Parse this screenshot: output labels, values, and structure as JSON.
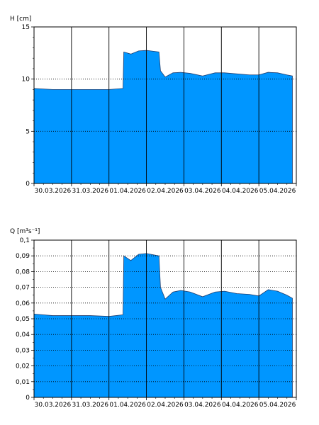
{
  "chart_data": [
    {
      "type": "area",
      "ylabel": "H [cm]",
      "ylim": [
        0,
        15
      ],
      "yticks": [
        0,
        5,
        10,
        15
      ],
      "ytick_labels": [
        "0",
        "5",
        "10",
        "15"
      ],
      "x_start": "2026-03-30T00:00",
      "x_end": "2026-04-06T00:00",
      "xtick_labels": [
        "30.03.2026",
        "31.03.2026",
        "01.04.2026",
        "02.04.2026",
        "03.04.2026",
        "04.04.2026",
        "05.04.2026"
      ],
      "grid": true,
      "fill_color": "#0096ff",
      "series": [
        {
          "x": [
            "2026-03-30T00:00",
            "2026-03-30T12:00",
            "2026-03-31T00:00",
            "2026-03-31T12:00",
            "2026-04-01T00:00",
            "2026-04-01T09:00",
            "2026-04-01T09:30",
            "2026-04-01T14:00",
            "2026-04-01T19:00",
            "2026-04-02T00:00",
            "2026-04-02T08:00",
            "2026-04-02T09:00",
            "2026-04-02T12:00",
            "2026-04-02T17:00",
            "2026-04-02T22:00",
            "2026-04-03T04:00",
            "2026-04-03T12:00",
            "2026-04-03T20:00",
            "2026-04-04T02:00",
            "2026-04-04T10:00",
            "2026-04-04T18:00",
            "2026-04-05T00:00",
            "2026-04-05T06:00",
            "2026-04-05T12:00",
            "2026-04-05T18:00",
            "2026-04-05T21:30"
          ],
          "values": [
            9.1,
            9.0,
            9.0,
            9.0,
            9.0,
            9.1,
            12.6,
            12.4,
            12.7,
            12.75,
            12.6,
            10.8,
            10.2,
            10.6,
            10.65,
            10.55,
            10.3,
            10.6,
            10.6,
            10.5,
            10.4,
            10.4,
            10.65,
            10.6,
            10.4,
            10.3
          ]
        }
      ]
    },
    {
      "type": "area",
      "ylabel": "Q [m³s⁻¹]",
      "ylim": [
        0,
        0.1
      ],
      "yticks": [
        0,
        0.01,
        0.02,
        0.03,
        0.04,
        0.05,
        0.06,
        0.07,
        0.08,
        0.09,
        0.1
      ],
      "ytick_labels": [
        "0",
        "0,01",
        "0,02",
        "0,03",
        "0,04",
        "0,05",
        "0,06",
        "0,07",
        "0,08",
        "0,09",
        "0,1"
      ],
      "x_start": "2026-03-30T00:00",
      "x_end": "2026-04-06T00:00",
      "xtick_labels": [
        "30.03.2026",
        "31.03.2026",
        "01.04.2026",
        "02.04.2026",
        "03.04.2026",
        "04.04.2026",
        "05.04.2026"
      ],
      "grid": true,
      "fill_color": "#0096ff",
      "series": [
        {
          "x": [
            "2026-03-30T00:00",
            "2026-03-30T12:00",
            "2026-03-31T00:00",
            "2026-03-31T12:00",
            "2026-04-01T00:00",
            "2026-04-01T09:00",
            "2026-04-01T09:30",
            "2026-04-01T14:00",
            "2026-04-01T19:00",
            "2026-04-02T00:00",
            "2026-04-02T08:00",
            "2026-04-02T09:00",
            "2026-04-02T12:00",
            "2026-04-02T17:00",
            "2026-04-02T22:00",
            "2026-04-03T04:00",
            "2026-04-03T12:00",
            "2026-04-03T20:00",
            "2026-04-04T02:00",
            "2026-04-04T10:00",
            "2026-04-04T18:00",
            "2026-04-05T00:00",
            "2026-04-05T06:00",
            "2026-04-05T12:00",
            "2026-04-05T18:00",
            "2026-04-05T21:30"
          ],
          "values": [
            0.053,
            0.052,
            0.052,
            0.052,
            0.0515,
            0.0525,
            0.09,
            0.087,
            0.091,
            0.0915,
            0.09,
            0.07,
            0.0625,
            0.067,
            0.068,
            0.067,
            0.064,
            0.067,
            0.0675,
            0.066,
            0.0655,
            0.0645,
            0.0685,
            0.0675,
            0.065,
            0.063
          ]
        }
      ]
    }
  ]
}
